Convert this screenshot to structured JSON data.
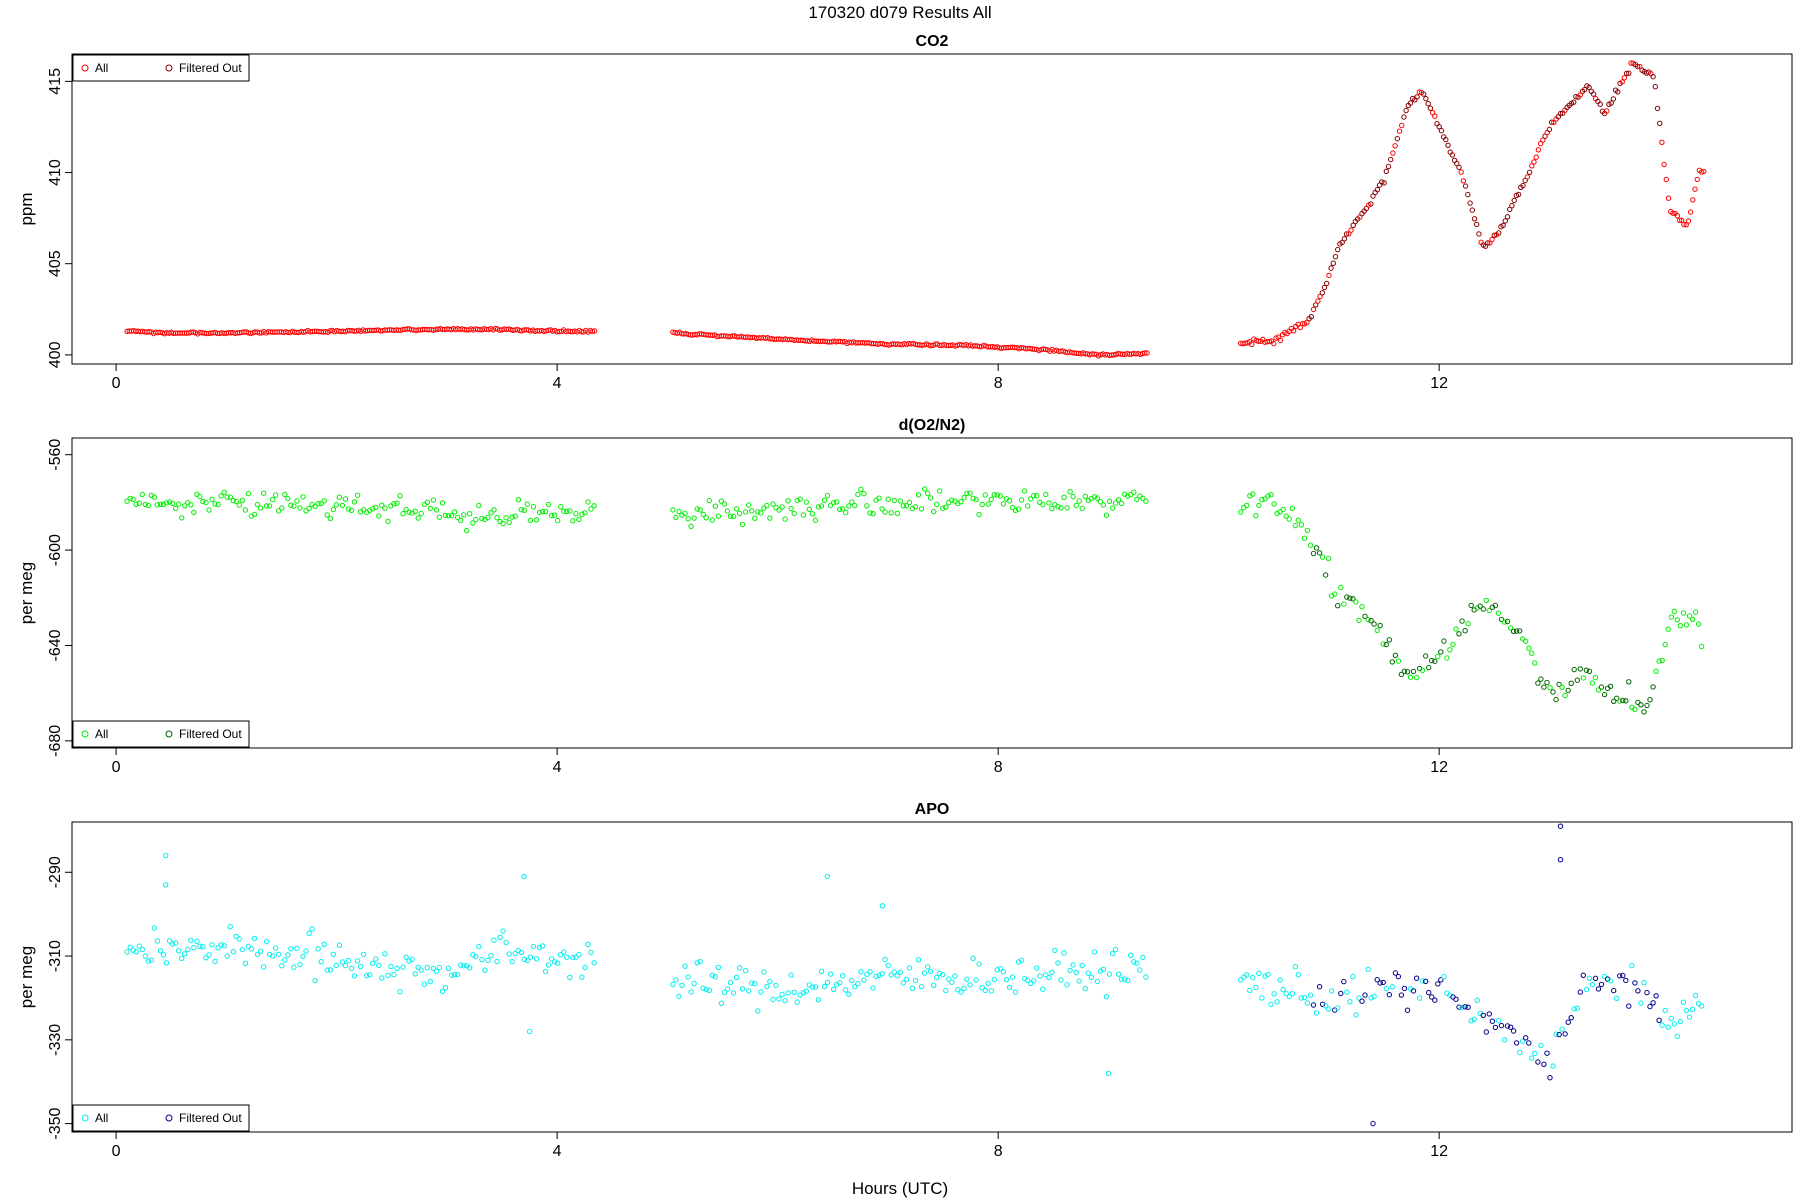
{
  "figure": {
    "title": "170320   d079   Results All",
    "xlabel": "Hours (UTC)"
  },
  "chart_data": [
    {
      "type": "scatter",
      "title": "CO2",
      "ylabel": "ppm",
      "xlim": [
        -0.4,
        15.2
      ],
      "ylim": [
        399.5,
        416.5
      ],
      "xticks": [
        0,
        4,
        8,
        12
      ],
      "yticks": [
        400,
        405,
        410,
        415
      ],
      "legend": "top-left",
      "colors": {
        "All": "#ff0000",
        "Filtered Out": "#8b0000"
      },
      "segments": [
        {
          "x0": 0.1,
          "x1": 4.35,
          "anchors": [
            [
              0.1,
              401.3
            ],
            [
              0.5,
              401.2
            ],
            [
              1.0,
              401.2
            ],
            [
              2.0,
              401.3
            ],
            [
              3.0,
              401.4
            ],
            [
              3.5,
              401.4
            ],
            [
              4.0,
              401.3
            ],
            [
              4.35,
              401.3
            ]
          ],
          "noise": 0.05
        },
        {
          "x0": 5.05,
          "x1": 9.35,
          "anchors": [
            [
              5.05,
              401.2
            ],
            [
              5.6,
              401.0
            ],
            [
              6.2,
              400.8
            ],
            [
              7.0,
              400.6
            ],
            [
              7.8,
              400.5
            ],
            [
              8.4,
              400.3
            ],
            [
              8.9,
              400.0
            ],
            [
              9.35,
              400.1
            ]
          ],
          "noise": 0.05
        },
        {
          "x0": 10.2,
          "x1": 14.4,
          "anchors": [
            [
              10.2,
              400.6
            ],
            [
              10.5,
              400.8
            ],
            [
              10.8,
              401.8
            ],
            [
              10.95,
              403.5
            ],
            [
              11.1,
              406.0
            ],
            [
              11.3,
              407.8
            ],
            [
              11.5,
              409.5
            ],
            [
              11.7,
              413.5
            ],
            [
              11.85,
              414.5
            ],
            [
              12.0,
              412.5
            ],
            [
              12.2,
              410.0
            ],
            [
              12.4,
              405.8
            ],
            [
              12.55,
              406.8
            ],
            [
              12.8,
              409.8
            ],
            [
              13.0,
              412.5
            ],
            [
              13.2,
              413.8
            ],
            [
              13.35,
              414.8
            ],
            [
              13.5,
              413.2
            ],
            [
              13.75,
              416.0
            ],
            [
              13.95,
              415.2
            ],
            [
              14.05,
              410.0
            ],
            [
              14.1,
              408.0
            ],
            [
              14.25,
              407.0
            ],
            [
              14.35,
              410.0
            ],
            [
              14.4,
              410.0
            ]
          ],
          "noise": 0.15
        }
      ],
      "filtered_out_range": [
        10.8,
        14.0
      ]
    },
    {
      "type": "scatter",
      "title": "d(O2/N2)",
      "ylabel": "per meg",
      "xlim": [
        -0.4,
        15.2
      ],
      "ylim": [
        -683,
        -553
      ],
      "xticks": [
        0,
        4,
        8,
        12
      ],
      "yticks": [
        -560,
        -600,
        -640,
        -680
      ],
      "legend": "bottom-left",
      "colors": {
        "All": "#00ee00",
        "Filtered Out": "#006400"
      },
      "segments": [
        {
          "x0": 0.1,
          "x1": 4.35,
          "anchors": [
            [
              0.1,
              -580
            ],
            [
              2.0,
              -581
            ],
            [
              3.0,
              -583
            ],
            [
              3.2,
              -588
            ],
            [
              4.35,
              -582
            ]
          ],
          "noise": 5
        },
        {
          "x0": 5.05,
          "x1": 9.35,
          "anchors": [
            [
              5.05,
              -585
            ],
            [
              6.0,
              -583
            ],
            [
              7.0,
              -580
            ],
            [
              8.0,
              -580
            ],
            [
              9.35,
              -578
            ]
          ],
          "noise": 5
        },
        {
          "x0": 10.2,
          "x1": 14.4,
          "anchors": [
            [
              10.2,
              -580
            ],
            [
              10.6,
              -583
            ],
            [
              10.9,
              -600
            ],
            [
              11.1,
              -620
            ],
            [
              11.4,
              -630
            ],
            [
              11.7,
              -652
            ],
            [
              12.0,
              -645
            ],
            [
              12.3,
              -625
            ],
            [
              12.5,
              -625
            ],
            [
              12.8,
              -640
            ],
            [
              13.0,
              -660
            ],
            [
              13.3,
              -652
            ],
            [
              13.6,
              -660
            ],
            [
              13.9,
              -664
            ],
            [
              14.1,
              -630
            ],
            [
              14.3,
              -628
            ],
            [
              14.4,
              -640
            ]
          ],
          "noise": 5
        }
      ],
      "filtered_out_range": [
        10.8,
        14.0
      ]
    },
    {
      "type": "scatter",
      "title": "APO",
      "ylabel": "per meg",
      "xlim": [
        -0.4,
        15.2
      ],
      "ylim": [
        -352,
        -278
      ],
      "xticks": [
        0,
        4,
        8,
        12
      ],
      "yticks": [
        -290,
        -310,
        -330,
        -350
      ],
      "legend": "bottom-left",
      "colors": {
        "All": "#00eeee",
        "Filtered Out": "#00008b"
      },
      "segments": [
        {
          "x0": 0.1,
          "x1": 4.35,
          "anchors": [
            [
              0.1,
              -308
            ],
            [
              1.0,
              -308
            ],
            [
              2.0,
              -311
            ],
            [
              3.0,
              -314
            ],
            [
              3.5,
              -309
            ],
            [
              4.35,
              -311
            ]
          ],
          "noise": 4.5
        },
        {
          "x0": 5.05,
          "x1": 9.35,
          "anchors": [
            [
              5.05,
              -316
            ],
            [
              6.0,
              -318
            ],
            [
              7.0,
              -315
            ],
            [
              8.0,
              -315
            ],
            [
              9.35,
              -313
            ]
          ],
          "noise": 4.5
        },
        {
          "x0": 10.2,
          "x1": 14.4,
          "anchors": [
            [
              10.2,
              -316
            ],
            [
              11.0,
              -320
            ],
            [
              11.5,
              -318
            ],
            [
              12.0,
              -318
            ],
            [
              12.3,
              -324
            ],
            [
              12.7,
              -330
            ],
            [
              13.0,
              -335
            ],
            [
              13.3,
              -318
            ],
            [
              13.7,
              -316
            ],
            [
              14.0,
              -325
            ],
            [
              14.4,
              -322
            ]
          ],
          "noise": 4.5
        }
      ],
      "outliers": [
        [
          0.45,
          -286
        ],
        [
          0.45,
          -293
        ],
        [
          3.7,
          -291
        ],
        [
          3.75,
          -328
        ],
        [
          6.45,
          -291
        ],
        [
          6.95,
          -298
        ],
        [
          9.0,
          -338
        ],
        [
          11.4,
          -350
        ],
        [
          13.1,
          -287
        ],
        [
          13.1,
          -279
        ]
      ],
      "filtered_out_range": [
        10.8,
        14.0
      ]
    }
  ]
}
